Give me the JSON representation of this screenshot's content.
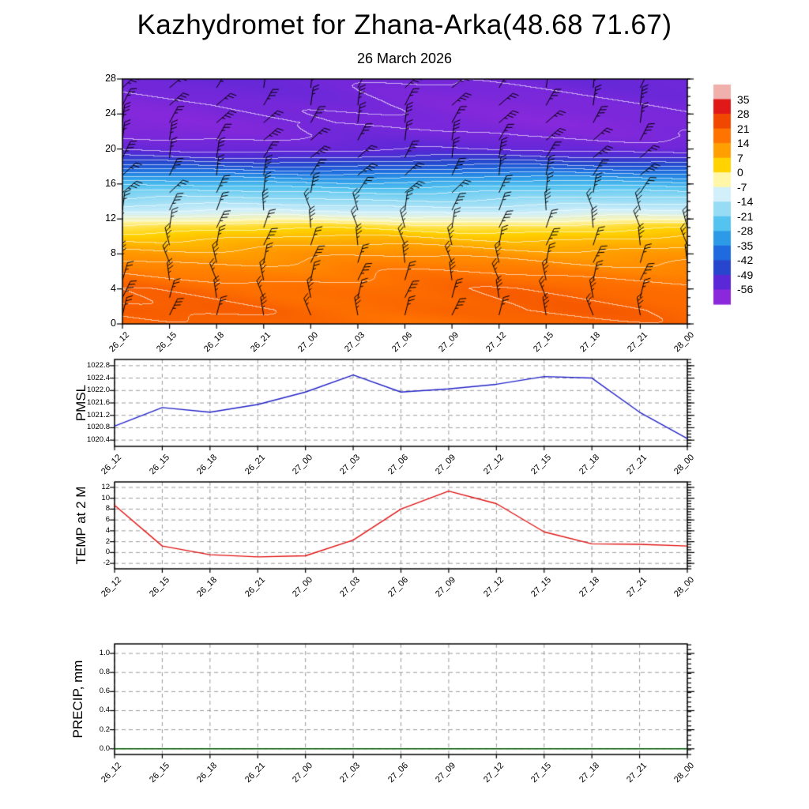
{
  "title": "Kazhydromet for Zhana-Arka(48.68 71.67)",
  "subtitle": "26 March 2026",
  "time_labels": [
    "26_12",
    "26_15",
    "26_18",
    "26_21",
    "27_00",
    "27_03",
    "27_06",
    "27_09",
    "27_12",
    "27_15",
    "27_18",
    "27_21",
    "28_00"
  ],
  "chart_data": [
    {
      "type": "heatmap",
      "name": "upper-air-temperature-time-height-section",
      "ylim": [
        0,
        28
      ],
      "yticks": [
        0,
        4,
        8,
        12,
        16,
        20,
        24,
        28
      ],
      "ytick_labels": [
        "0",
        "4",
        "8",
        "12",
        "16",
        "20",
        "24",
        "28"
      ],
      "colorbar_levels": [
        35,
        28,
        21,
        14,
        7,
        0,
        -7,
        -14,
        -21,
        -28,
        -35,
        -42,
        -49,
        -56
      ],
      "colorbar_colors": [
        "#f0b0ac",
        "#e01818",
        "#f04800",
        "#ff7300",
        "#ffa000",
        "#ffd200",
        "#fff6a8",
        "#d2f0fa",
        "#96dcf5",
        "#55c3f0",
        "#2d9ae8",
        "#1f6ade",
        "#2846cd",
        "#5a28d7",
        "#8c28dc"
      ],
      "temperature_profile": [
        [
          0,
          19
        ],
        [
          1.5,
          20
        ],
        [
          4,
          19
        ],
        [
          6,
          16
        ],
        [
          8,
          12
        ],
        [
          9.5,
          7.5
        ],
        [
          10.5,
          3.5
        ],
        [
          11.3,
          0
        ],
        [
          12,
          -6
        ],
        [
          12.8,
          -11
        ],
        [
          14,
          -17
        ],
        [
          15,
          -21
        ],
        [
          16,
          -27
        ],
        [
          17,
          -34
        ],
        [
          18,
          -42
        ],
        [
          19,
          -49
        ],
        [
          20,
          -54
        ],
        [
          21.5,
          -56.5
        ],
        [
          23,
          -57.5
        ],
        [
          25,
          -57
        ],
        [
          28,
          -55.5
        ]
      ],
      "wind_barbs_grid": {
        "cols": 13,
        "rows": 14
      }
    },
    {
      "type": "line",
      "ylabel": "PMSL",
      "color": "#2222c8",
      "ylim": [
        1020.2,
        1023.0
      ],
      "yticks": [
        1020.4,
        1020.8,
        1021.2,
        1021.6,
        1022.0,
        1022.4,
        1022.8
      ],
      "ytick_labels": [
        "1020.4",
        "1020.8",
        "1021.2",
        "1021.6",
        "1022.0",
        "1022.4",
        "1022.8"
      ],
      "values": [
        1020.85,
        1021.45,
        1021.3,
        1021.55,
        1021.95,
        1022.5,
        1021.95,
        1022.05,
        1022.2,
        1022.45,
        1022.4,
        1021.3,
        1020.45
      ]
    },
    {
      "type": "line",
      "ylabel": "TEMP at 2 M",
      "color": "#e01010",
      "ylim": [
        -3,
        13
      ],
      "yticks": [
        -2,
        0,
        2,
        4,
        6,
        8,
        10,
        12
      ],
      "ytick_labels": [
        "-2",
        "0",
        "2",
        "4",
        "6",
        "8",
        "10",
        "12"
      ],
      "values": [
        8.7,
        1.2,
        -0.4,
        -0.8,
        -0.6,
        2.3,
        8.0,
        11.3,
        9.0,
        3.8,
        1.6,
        1.5,
        1.2
      ]
    },
    {
      "type": "line",
      "ylabel": "PRECIP, mm",
      "color": "#005a00",
      "ylim": [
        -0.06,
        1.1
      ],
      "yticks": [
        0.0,
        0.2,
        0.4,
        0.6,
        0.8,
        1.0
      ],
      "ytick_labels": [
        "0.0",
        "0.2",
        "0.4",
        "0.6",
        "0.8",
        "1.0"
      ],
      "values": [
        0,
        0,
        0,
        0,
        0,
        0,
        0,
        0,
        0,
        0,
        0,
        0,
        0
      ]
    }
  ]
}
